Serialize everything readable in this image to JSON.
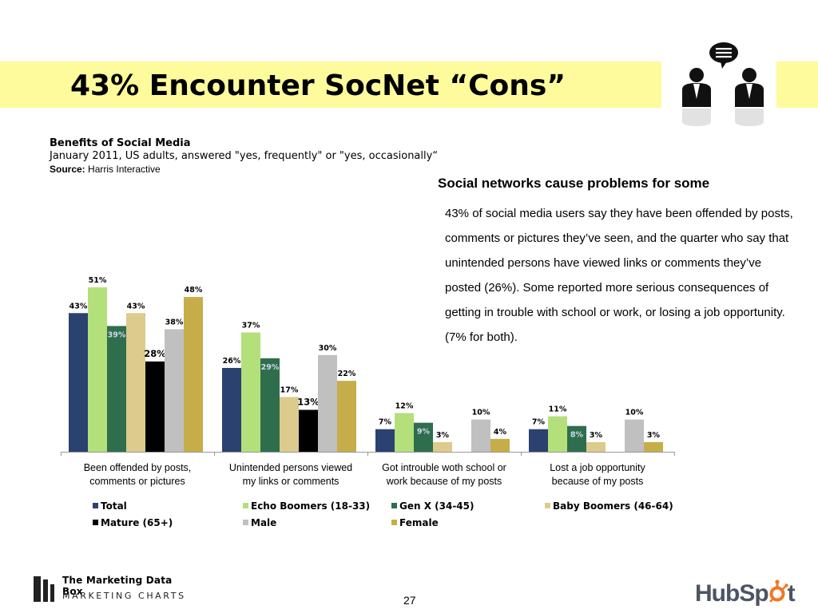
{
  "title": "43% Encounter SocNet “Cons”",
  "subtitle": {
    "heading": "Benefits of Social Media",
    "line": "January 2011, US adults, answered \"yes, frequently\" or \"yes, occasionally“",
    "source_label": "Source:",
    "source_value": "Harris Interactive"
  },
  "side_text": {
    "heading": "Social networks cause problems for some",
    "body": "43% of social media users say they have been offended by posts, comments or pictures they’ve seen, and the quarter who say that unintended persons have viewed links or comments they’ve posted (26%). Some reported more serious consequences of getting in trouble with school or work, or losing a job opportunity. (7% for both)."
  },
  "chart_data": {
    "type": "bar",
    "title": "Benefits of Social Media",
    "categories": [
      "Been offended by posts, comments or pictures",
      "Unintended persons viewed my links or comments",
      "Got introuble woth school or work because of my posts",
      "Lost a job opportunity because of my posts"
    ],
    "category_lines": [
      [
        "Been offended by posts,",
        "comments or pictures"
      ],
      [
        "Unintended persons viewed",
        "my links or comments"
      ],
      [
        "Got introuble woth school or",
        "work because of my posts"
      ],
      [
        "Lost a job opportunity",
        "because of my posts"
      ]
    ],
    "series": [
      {
        "name": "Total",
        "color": "#2b4170",
        "values": [
          43,
          26,
          7,
          7
        ]
      },
      {
        "name": "Echo Boomers (18-33)",
        "color": "#b3e07a",
        "values": [
          51,
          37,
          12,
          11
        ]
      },
      {
        "name": "Gen X (34-45)",
        "color": "#2f6e4d",
        "values": [
          39,
          29,
          9,
          8
        ]
      },
      {
        "name": "Baby Boomers (46-64)",
        "color": "#dccb8c",
        "values": [
          43,
          17,
          3,
          3
        ]
      },
      {
        "name": "Mature (65+)",
        "color": "#000000",
        "values": [
          28,
          13,
          null,
          null
        ]
      },
      {
        "name": "Male",
        "color": "#c0c0c0",
        "values": [
          38,
          30,
          10,
          10
        ]
      },
      {
        "name": "Female",
        "color": "#c5ae4a",
        "values": [
          48,
          22,
          4,
          3
        ]
      }
    ],
    "ylim": [
      0,
      60
    ],
    "grid": false,
    "legend": "bottom",
    "xlabel": "",
    "ylabel": ""
  },
  "footer": {
    "brand_top": "The Marketing Data Box",
    "brand_bottom": "MARKETING CHARTS",
    "page_number": "27",
    "hubspot_text": "HubSp",
    "hubspot_tail": "t"
  }
}
